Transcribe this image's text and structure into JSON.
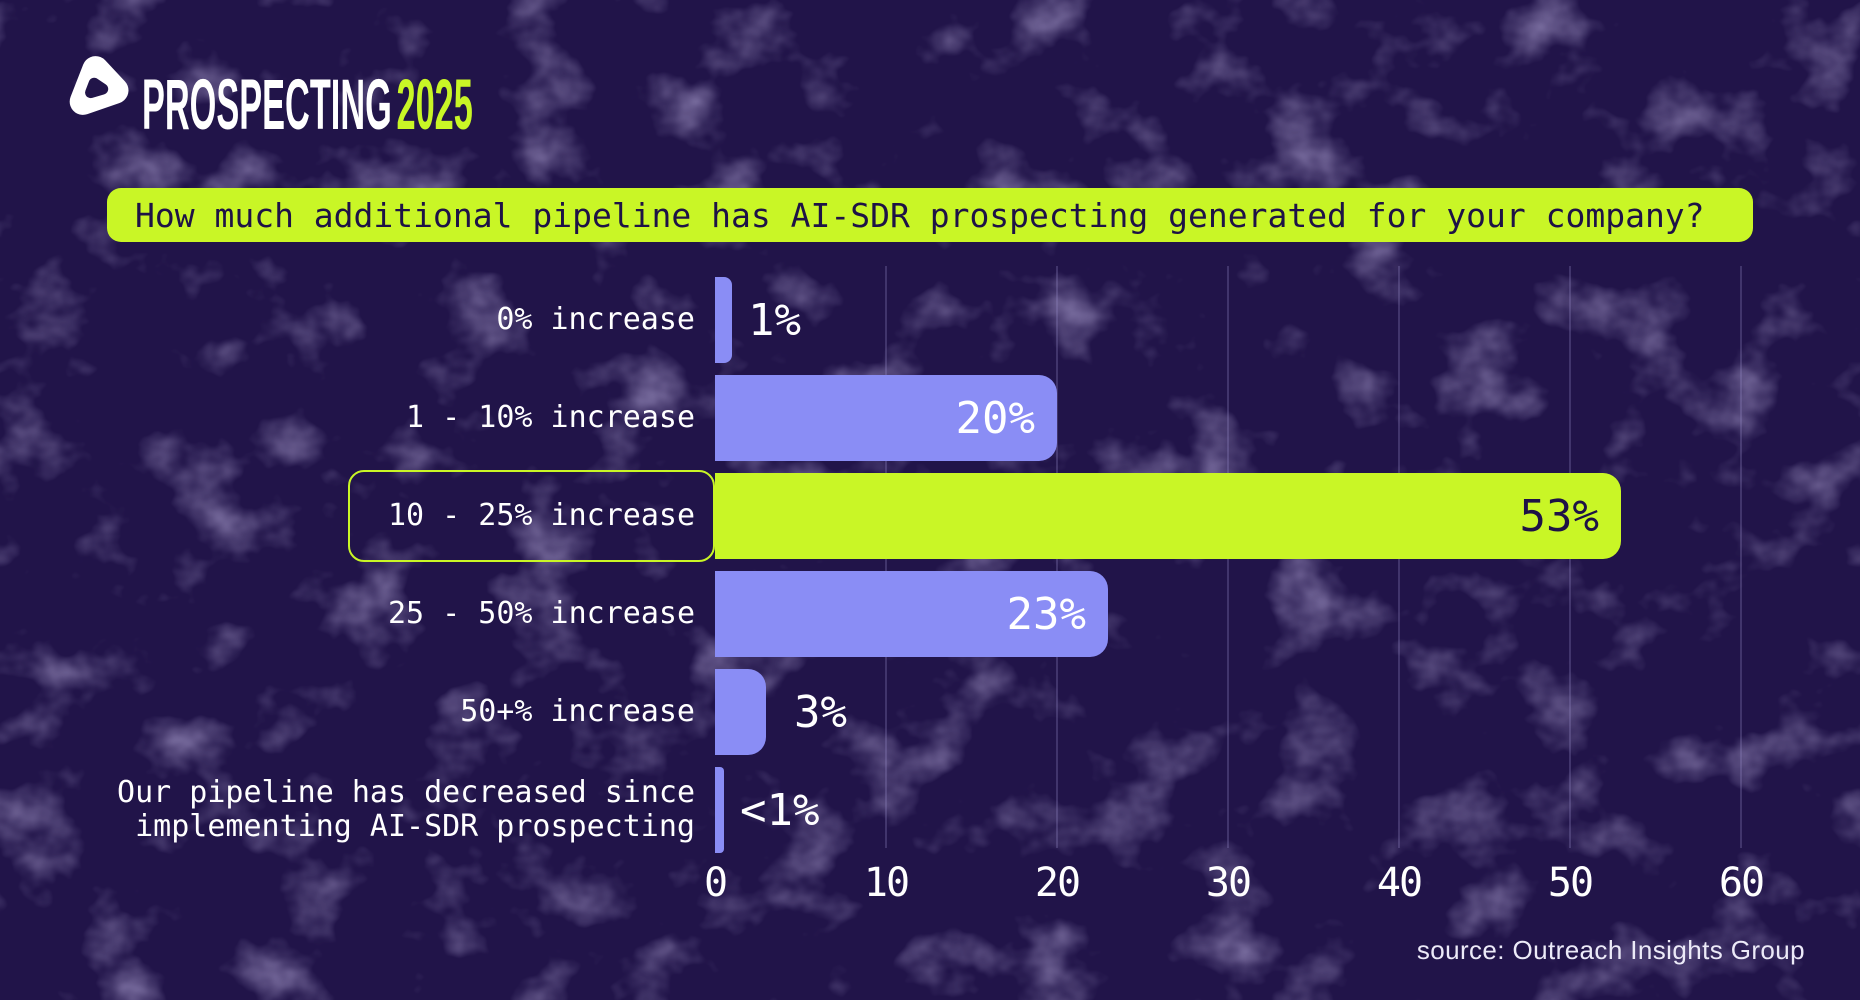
{
  "brand": {
    "wordmark": "PROSPECTING",
    "year": "2025",
    "mark_color": "#ffffff",
    "year_color": "#c9f626"
  },
  "title": {
    "text": "How much additional pipeline has AI-SDR prospecting generated for your company?",
    "bg_color": "#c9f626",
    "text_color": "#1e1246"
  },
  "chart_data": {
    "type": "bar",
    "orientation": "horizontal",
    "title": "How much additional pipeline has AI-SDR prospecting generated for your company?",
    "categories": [
      "0% increase",
      "1 - 10% increase",
      "10 - 25% increase",
      "25 - 50% increase",
      "50+% increase",
      "Our pipeline has decreased since implementing AI-SDR prospecting"
    ],
    "category_lines": [
      [
        "0% increase"
      ],
      [
        "1 - 10% increase"
      ],
      [
        "10 - 25% increase"
      ],
      [
        "25 - 50% increase"
      ],
      [
        "50+% increase"
      ],
      [
        "Our pipeline has decreased since",
        "implementing AI-SDR prospecting"
      ]
    ],
    "values": [
      1,
      20,
      53,
      23,
      3,
      0.5
    ],
    "value_labels": [
      "1%",
      "20%",
      "53%",
      "23%",
      "3%",
      "<1%"
    ],
    "label_inside": [
      false,
      true,
      true,
      true,
      false,
      false
    ],
    "highlight_index": 2,
    "xticks": [
      0,
      10,
      20,
      30,
      40,
      50,
      60
    ],
    "xlim": [
      0,
      60
    ],
    "xlabel": "",
    "ylabel": "",
    "grid": "vertical",
    "legend": false,
    "colors": {
      "bar": "#8a8df5",
      "highlight_bar": "#c9f626",
      "value_on_bar": "#ffffff",
      "value_on_highlight": "#1e1246",
      "background": "#211449"
    }
  },
  "source": {
    "text": "source: Outreach Insights Group"
  }
}
